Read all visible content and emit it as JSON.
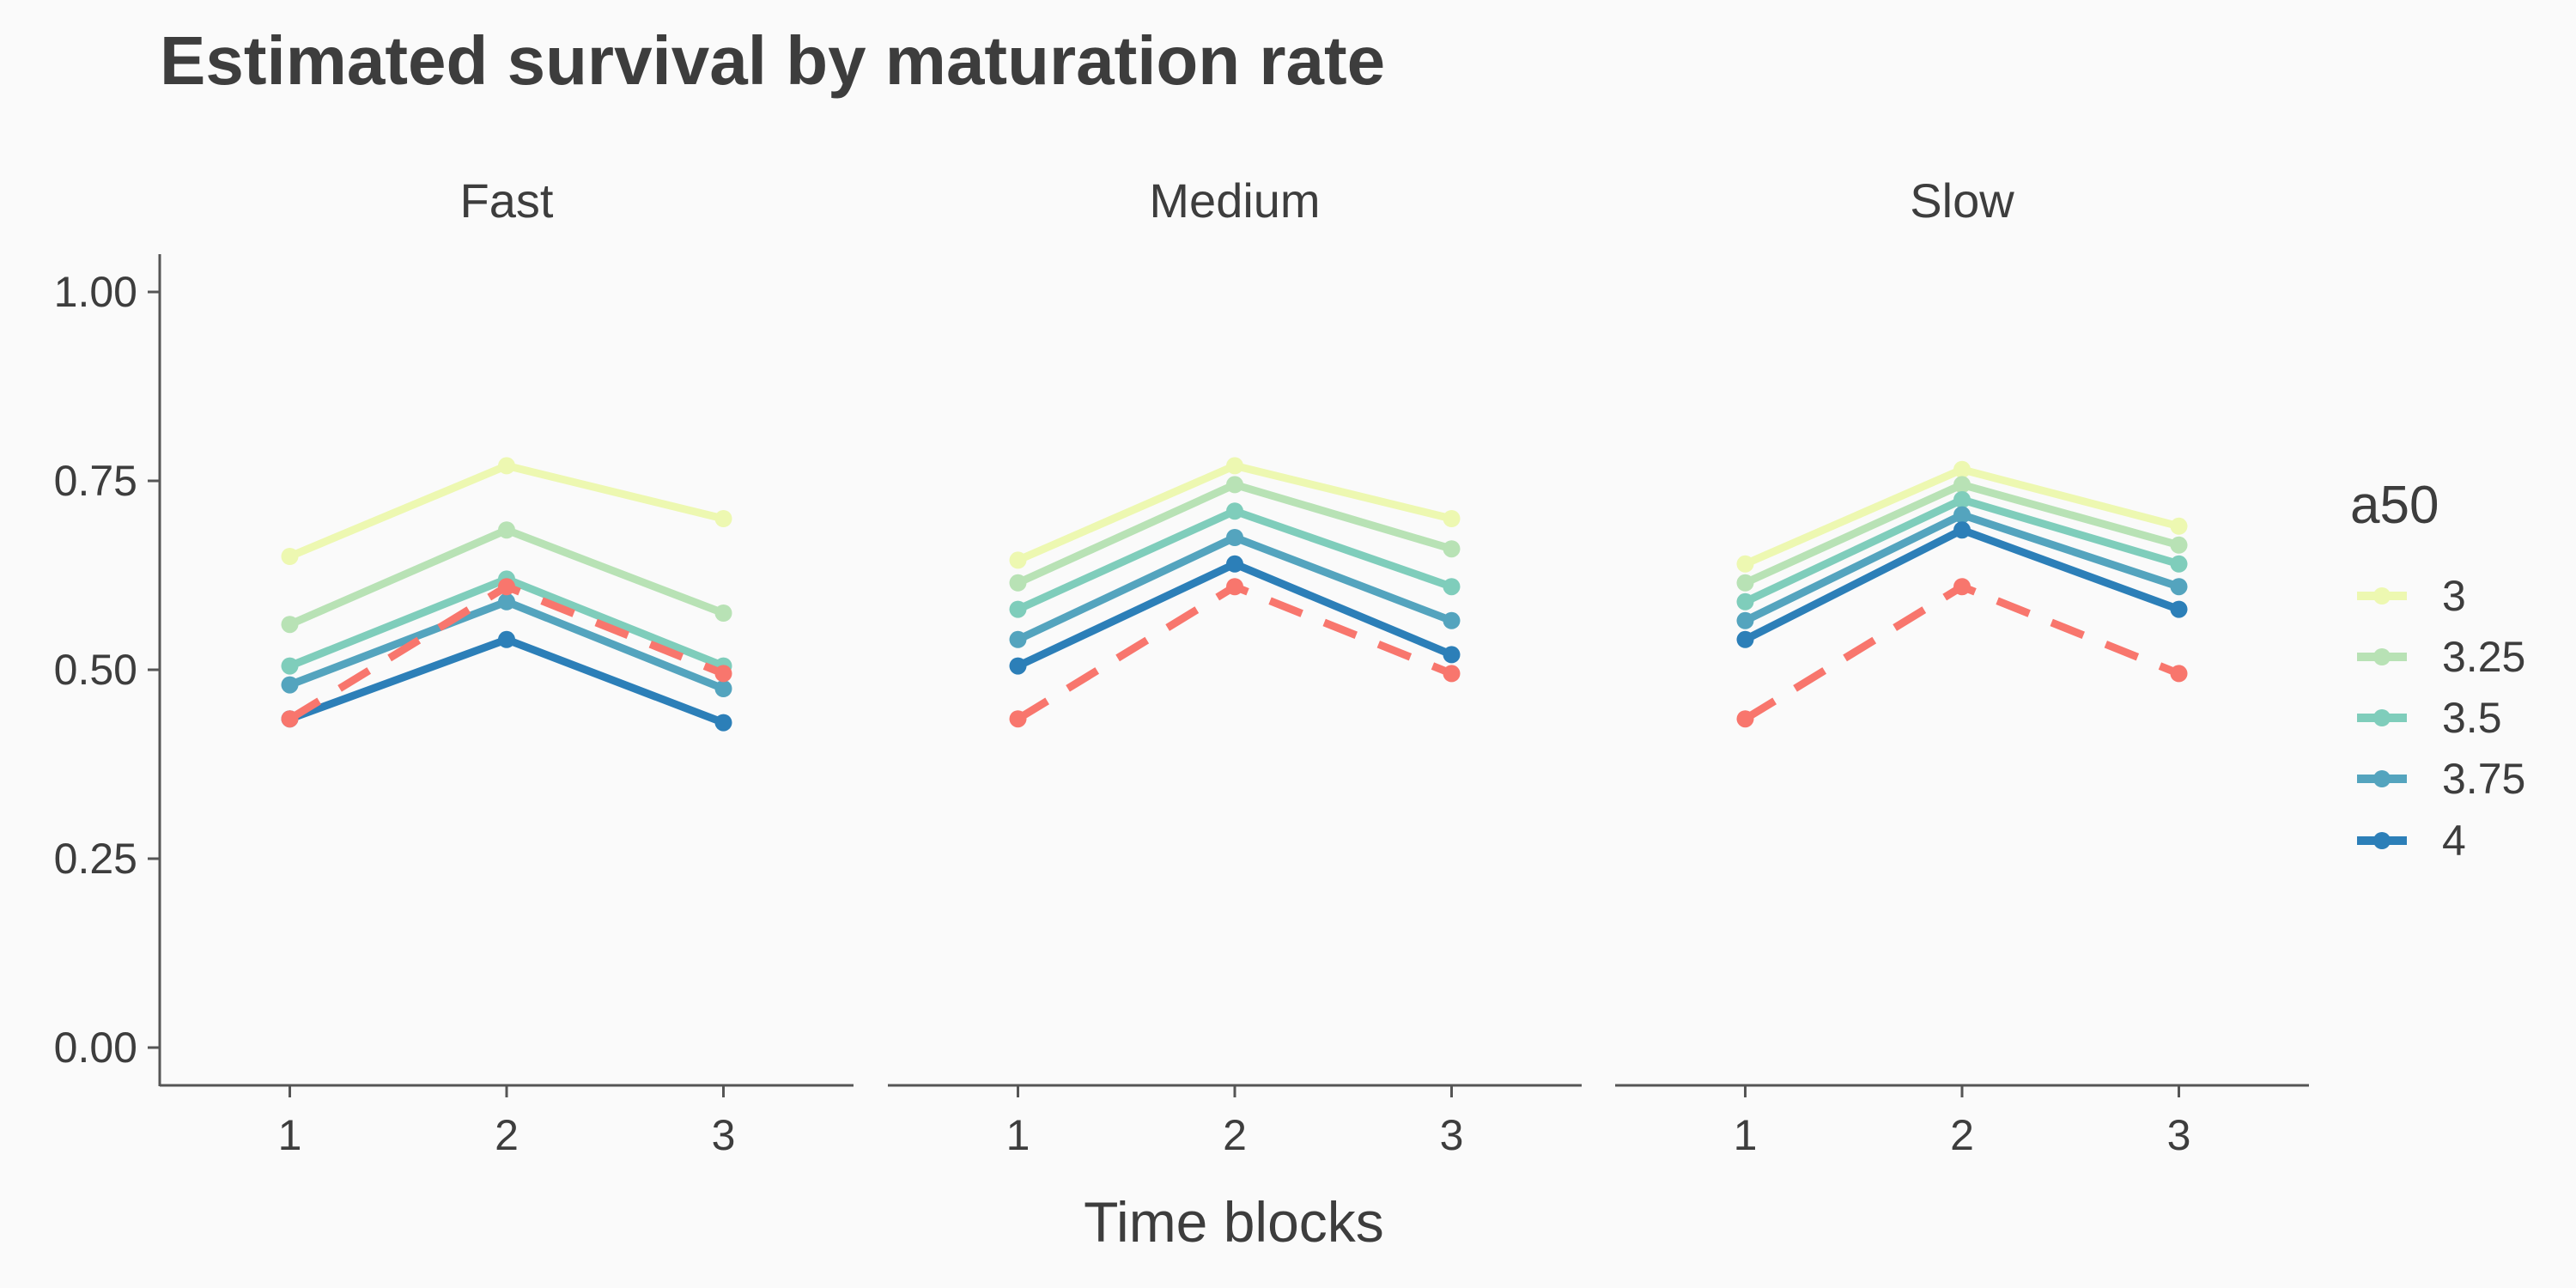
{
  "chart_data": {
    "type": "line",
    "title": "Estimated survival by maturation rate",
    "xlabel": "Time blocks",
    "ylabel": "",
    "x": [
      1,
      2,
      3
    ],
    "x_tick_labels": [
      "1",
      "2",
      "3"
    ],
    "ylim": [
      -0.05,
      1.05
    ],
    "y_ticks": [
      0,
      0.25,
      0.5,
      0.75,
      1
    ],
    "y_tick_labels": [
      "0.00",
      "0.25",
      "0.50",
      "0.75",
      "1.00"
    ],
    "grid": false,
    "legend": {
      "title": "a50",
      "position": "right",
      "entries": [
        "3",
        "3.25",
        "3.5",
        "3.75",
        "4"
      ]
    },
    "colors": [
      "#EDF8B1",
      "#B8E2B5",
      "#7FCDBB",
      "#54A4BE",
      "#2C7FB8"
    ],
    "reference_color": "#F8766D",
    "panels": [
      {
        "name": "Fast",
        "series": [
          {
            "name": "3",
            "values": [
              0.65,
              0.77,
              0.7
            ]
          },
          {
            "name": "3.25",
            "values": [
              0.56,
              0.685,
              0.575
            ]
          },
          {
            "name": "3.5",
            "values": [
              0.505,
              0.62,
              0.505
            ]
          },
          {
            "name": "3.75",
            "values": [
              0.48,
              0.59,
              0.475
            ]
          },
          {
            "name": "4",
            "values": [
              0.435,
              0.54,
              0.43
            ]
          }
        ],
        "reference": [
          0.435,
          0.61,
          0.495
        ]
      },
      {
        "name": "Medium",
        "series": [
          {
            "name": "3",
            "values": [
              0.645,
              0.77,
              0.7
            ]
          },
          {
            "name": "3.25",
            "values": [
              0.615,
              0.745,
              0.66
            ]
          },
          {
            "name": "3.5",
            "values": [
              0.58,
              0.71,
              0.61
            ]
          },
          {
            "name": "3.75",
            "values": [
              0.54,
              0.675,
              0.565
            ]
          },
          {
            "name": "4",
            "values": [
              0.505,
              0.64,
              0.52
            ]
          }
        ],
        "reference": [
          0.435,
          0.61,
          0.495
        ]
      },
      {
        "name": "Slow",
        "series": [
          {
            "name": "3",
            "values": [
              0.64,
              0.765,
              0.69
            ]
          },
          {
            "name": "3.25",
            "values": [
              0.615,
              0.745,
              0.665
            ]
          },
          {
            "name": "3.5",
            "values": [
              0.59,
              0.725,
              0.64
            ]
          },
          {
            "name": "3.75",
            "values": [
              0.565,
              0.705,
              0.61
            ]
          },
          {
            "name": "4",
            "values": [
              0.54,
              0.685,
              0.58
            ]
          }
        ],
        "reference": [
          0.435,
          0.61,
          0.495
        ]
      }
    ]
  }
}
